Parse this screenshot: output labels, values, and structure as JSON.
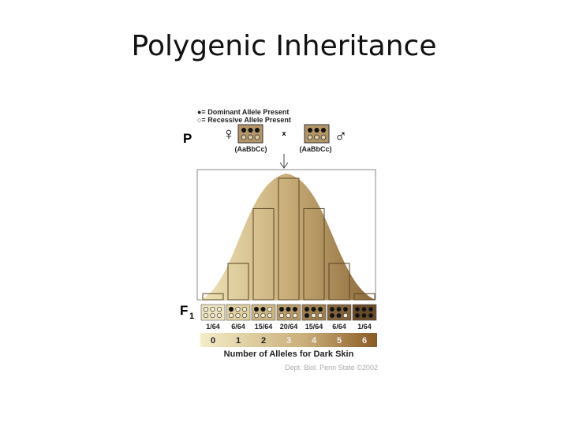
{
  "title": "Polygenic Inheritance",
  "legend": {
    "dominant": "●= Dominant Allele Present",
    "recessive": "○= Recessive Allele Present"
  },
  "parents": {
    "label": "P",
    "female_symbol": "♀",
    "cross": "x",
    "male_symbol": "♂",
    "female_genotype": "(AaBbCc)",
    "male_genotype": "(AaBbCc)"
  },
  "offspring": {
    "label": "F",
    "subscript": "1",
    "fractions": [
      "1/64",
      "6/64",
      "15/64",
      "20/64",
      "15/64",
      "6/64",
      "1/64"
    ],
    "allele_counts": [
      "0",
      "1",
      "2",
      "3",
      "4",
      "5",
      "6"
    ],
    "axis_label": "Number of Alleles for Dark Skin",
    "credit": "Dept. Biol. Penn State ©2002"
  }
}
